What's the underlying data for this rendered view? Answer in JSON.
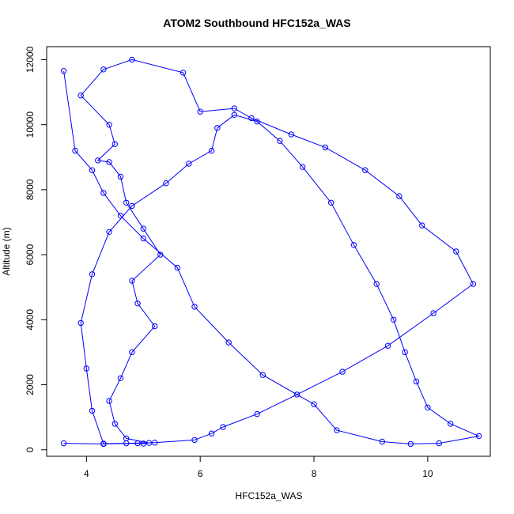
{
  "chart_data": {
    "type": "line",
    "title": "ATOM2 Southbound HFC152a_WAS",
    "xlabel": "HFC152a_WAS",
    "ylabel": "Altitude (m)",
    "xlim": [
      3.3,
      11.1
    ],
    "ylim": [
      -200,
      12400
    ],
    "x_ticks": [
      4,
      6,
      8,
      10
    ],
    "y_ticks": [
      0,
      2000,
      4000,
      6000,
      8000,
      10000,
      12000
    ],
    "marker": "open-circle",
    "series_color": "#0000ff",
    "grid": false,
    "legend": "none",
    "series": [
      {
        "x": [
          3.6,
          4.3,
          4.9,
          5.0,
          5.1,
          4.7,
          4.5,
          4.4,
          4.6,
          4.8,
          5.2,
          4.9,
          4.8,
          5.3,
          5.0,
          4.7,
          4.6,
          4.4,
          4.2,
          4.5,
          4.4,
          3.9,
          4.3,
          4.8,
          5.7,
          6.0,
          6.6,
          6.9,
          7.6,
          8.2,
          8.9,
          9.5,
          9.9,
          10.5,
          10.8,
          10.1,
          9.3,
          8.5,
          7.7,
          7.0,
          6.4,
          6.2,
          5.9,
          5.2,
          4.7,
          4.3,
          4.1,
          4.0,
          3.9,
          4.1,
          4.4,
          4.8,
          5.4,
          5.8,
          6.2,
          6.3,
          6.6,
          7.0,
          7.4,
          7.8,
          8.3,
          8.7,
          9.1,
          9.4,
          9.6,
          9.8,
          10.0,
          10.4,
          10.9,
          10.2,
          9.7,
          9.2,
          8.4,
          8.0,
          7.1,
          6.5,
          5.9,
          5.6,
          5.0,
          4.6,
          4.3,
          4.1,
          3.8,
          3.6
        ],
        "y": [
          200,
          180,
          200,
          190,
          210,
          350,
          800,
          1500,
          2200,
          3000,
          3800,
          4500,
          5200,
          6000,
          6800,
          7600,
          8400,
          8850,
          8900,
          9400,
          10000,
          10900,
          11700,
          12000,
          11600,
          10400,
          10500,
          10200,
          9700,
          9300,
          8600,
          7800,
          6900,
          6100,
          5100,
          4200,
          3200,
          2400,
          1700,
          1100,
          700,
          500,
          300,
          220,
          200,
          190,
          1200,
          2500,
          3900,
          5400,
          6700,
          7500,
          8200,
          8800,
          9200,
          9900,
          10300,
          10100,
          9500,
          8700,
          7600,
          6300,
          5100,
          4000,
          3000,
          2100,
          1300,
          800,
          420,
          200,
          180,
          250,
          600,
          1400,
          2300,
          3300,
          4400,
          5600,
          6500,
          7200,
          7900,
          8600,
          9200,
          11650
        ]
      }
    ]
  }
}
